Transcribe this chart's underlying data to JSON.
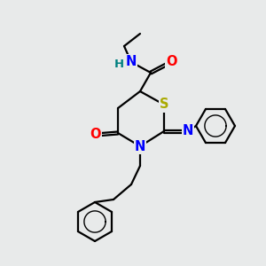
{
  "background_color": "#e8eaea",
  "bond_color": "#000000",
  "atom_colors": {
    "N": "#0000ff",
    "O": "#ff0000",
    "S": "#aaaa00",
    "H": "#008080",
    "C": "#000000"
  },
  "figsize": [
    3.0,
    3.0
  ],
  "dpi": 100
}
